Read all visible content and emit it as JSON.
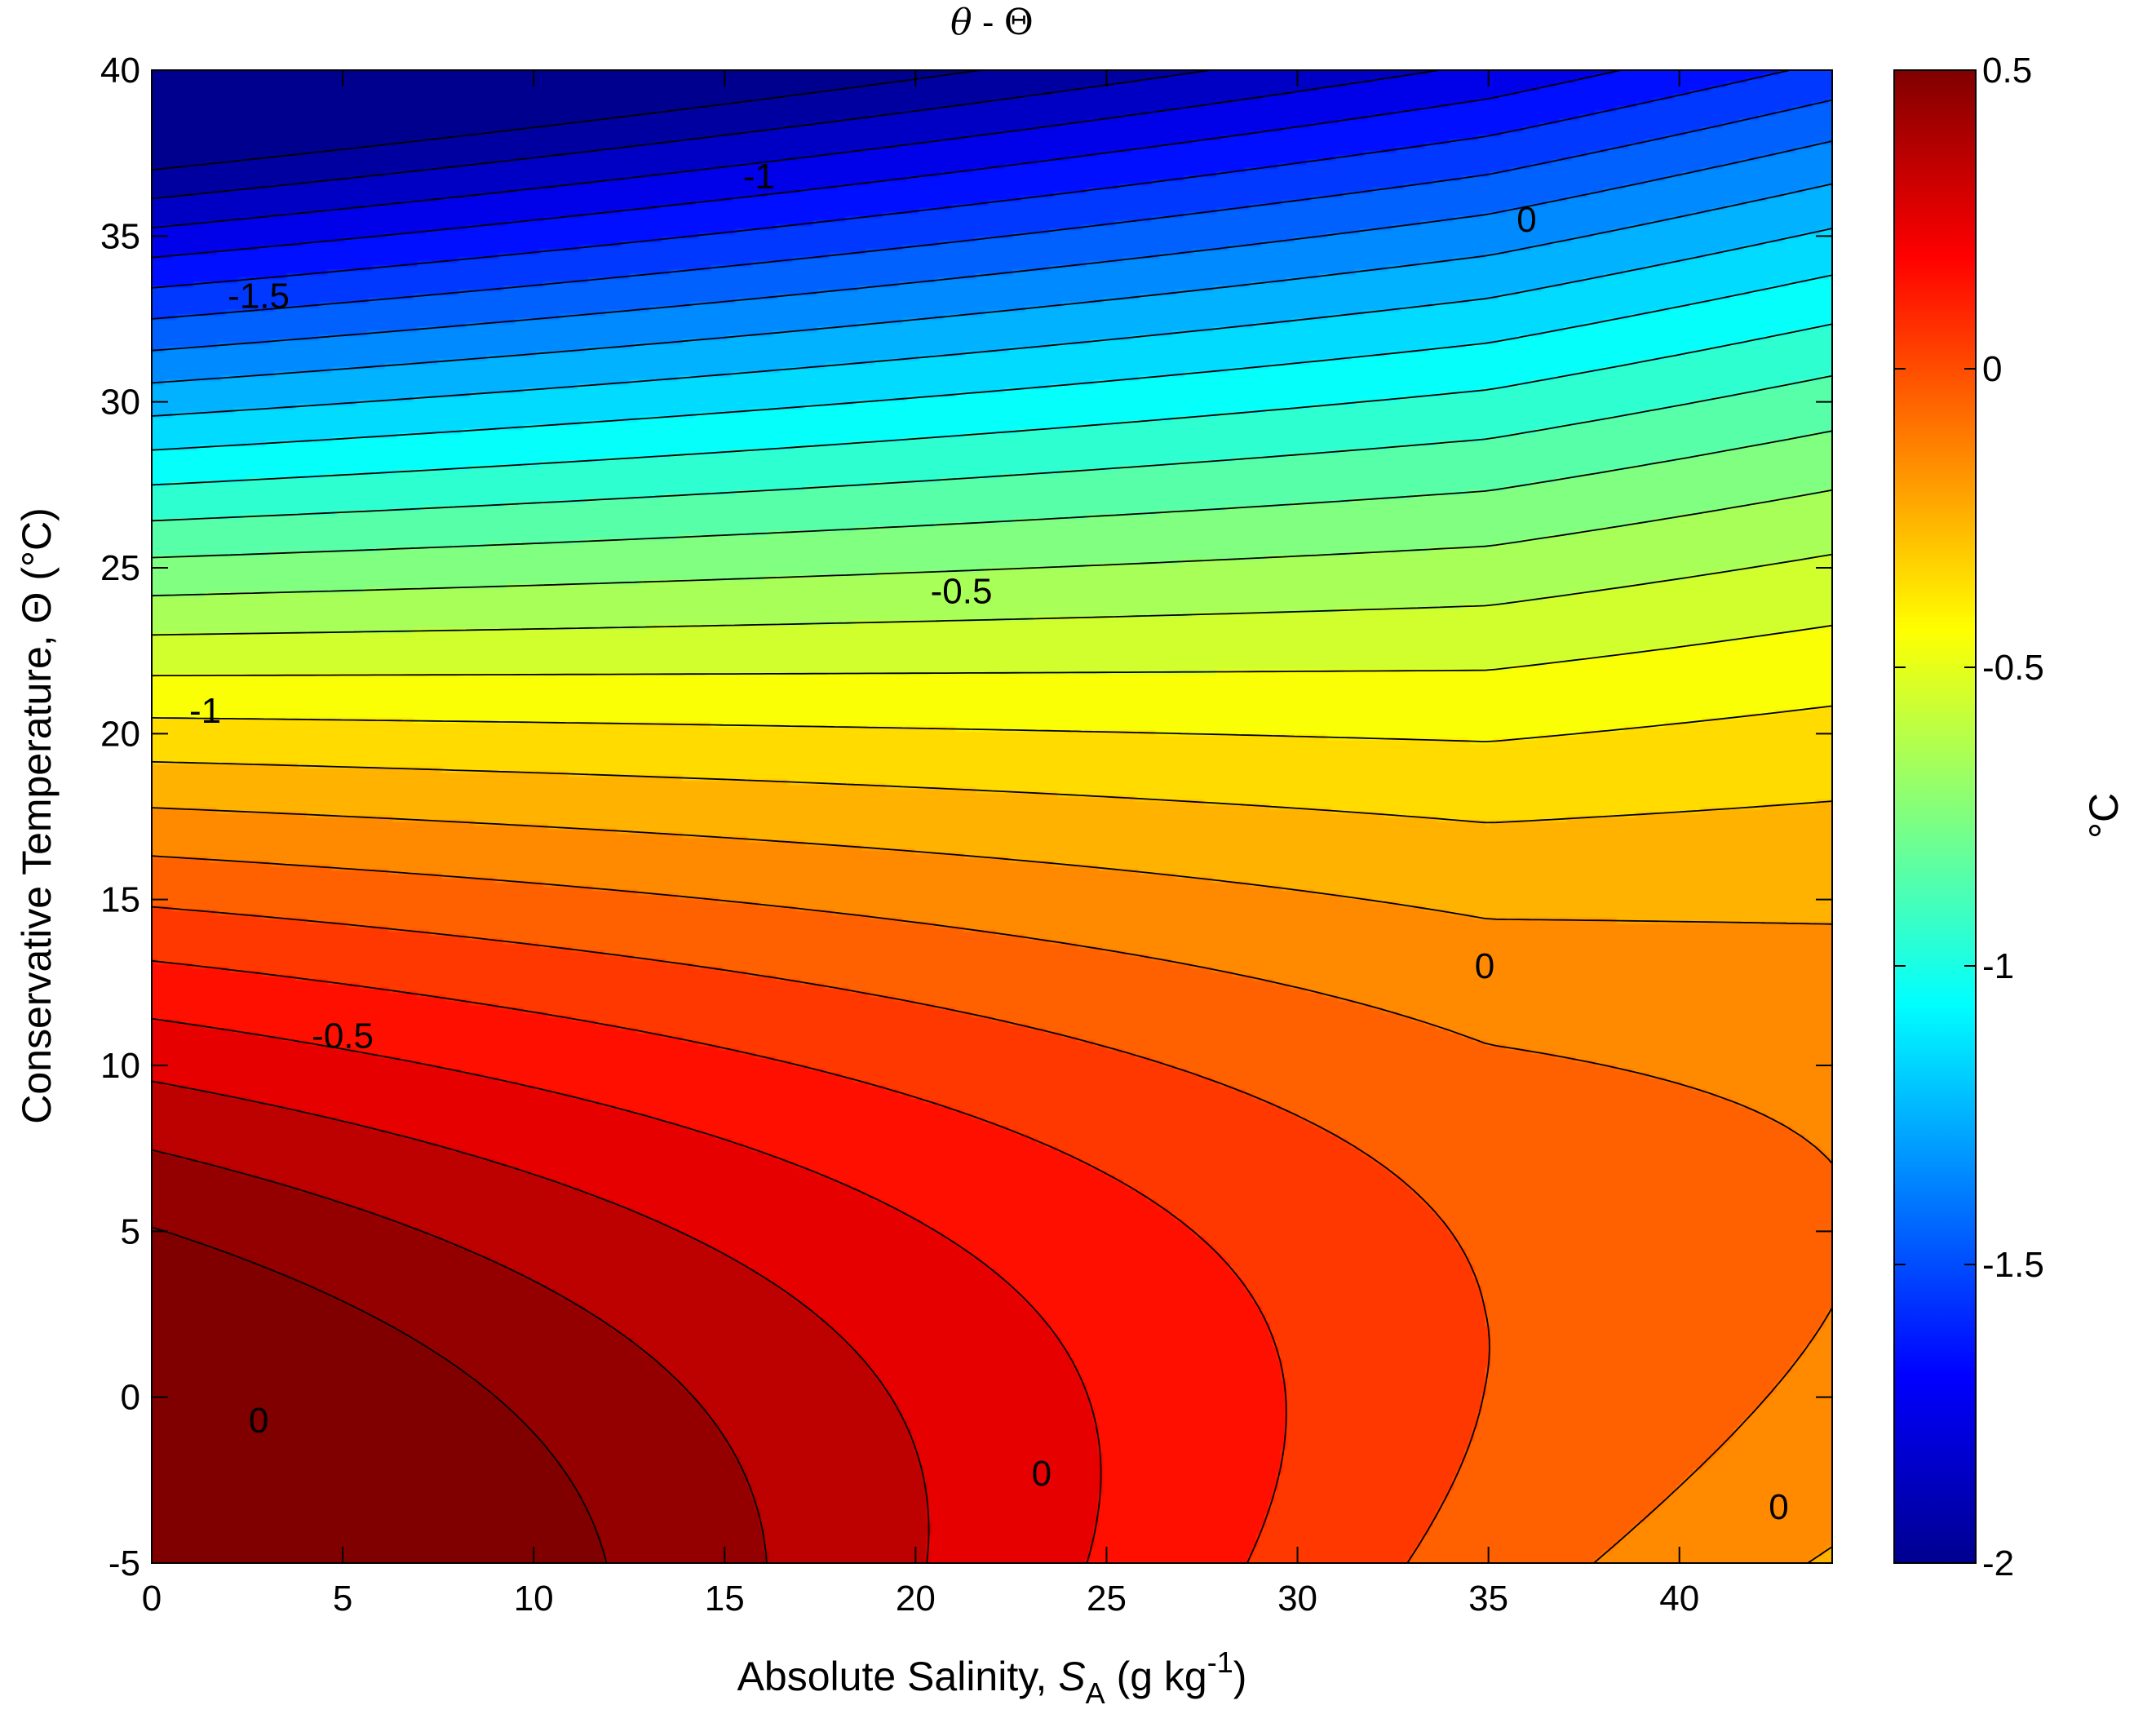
{
  "chart_data": {
    "type": "heatmap",
    "subtype": "filled-contour",
    "title": "θ - Θ",
    "xlabel": "Absolute Salinity, S_A (g kg⁻¹)",
    "ylabel": "Conservative Temperature, Θ (°C)",
    "xlim": [
      0,
      44
    ],
    "ylim": [
      -5,
      40
    ],
    "xticks": [
      0,
      5,
      10,
      15,
      20,
      25,
      30,
      35,
      40
    ],
    "yticks": [
      -5,
      0,
      5,
      10,
      15,
      20,
      25,
      30,
      35,
      40
    ],
    "colormap": "jet",
    "clim": [
      -2,
      0.5
    ],
    "colorbar": {
      "position": "right",
      "label": "°C",
      "ticks": [
        -2,
        -1.5,
        -1,
        -0.5,
        0,
        0.5
      ],
      "tick_labels": [
        "-2",
        "-1.5",
        "-1",
        "-0.5",
        "0",
        "0.5"
      ]
    },
    "contour_interval": 0.1,
    "contour_labels": [
      {
        "text": "-1.5",
        "x": 2.8,
        "y": 33.2
      },
      {
        "text": "-1",
        "x": 15.9,
        "y": 36.8
      },
      {
        "text": "-1",
        "x": 1.4,
        "y": 20.7
      },
      {
        "text": "-0.5",
        "x": 21.2,
        "y": 24.3
      },
      {
        "text": "-0.5",
        "x": 5.0,
        "y": 10.9
      },
      {
        "text": "0",
        "x": 36.0,
        "y": 35.5
      },
      {
        "text": "0",
        "x": 34.9,
        "y": 13.0
      },
      {
        "text": "0",
        "x": 2.8,
        "y": -0.7
      },
      {
        "text": "0",
        "x": 23.3,
        "y": -2.3
      },
      {
        "text": "0",
        "x": 42.6,
        "y": -3.3
      }
    ],
    "grid": false,
    "legend": "none"
  },
  "axes": {
    "x_tick_labels": [
      "0",
      "5",
      "10",
      "15",
      "20",
      "25",
      "30",
      "35",
      "40"
    ],
    "y_tick_labels": [
      "-5",
      "0",
      "5",
      "10",
      "15",
      "20",
      "25",
      "30",
      "35",
      "40"
    ],
    "xlabel_main": "Absolute Salinity, ",
    "xlabel_sym": "S",
    "xlabel_sub": "A",
    "xlabel_unit_open": " (g kg",
    "xlabel_sup": "-1",
    "xlabel_unit_close": ")",
    "ylabel": "Conservative Temperature, Θ (°C)",
    "colorbar_label": "°C",
    "title_left": "θ",
    "title_mid": " - ",
    "title_right": "Θ"
  }
}
